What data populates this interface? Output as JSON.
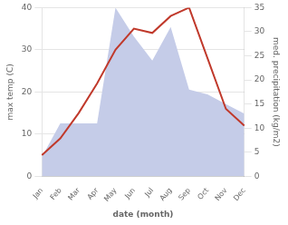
{
  "chart_data": {
    "type": "line",
    "xlabel": "date (month)",
    "ylabel": "max temp (C)",
    "y2label": "med. precipitation (kg/m2)",
    "categories": [
      "Jan",
      "Feb",
      "Mar",
      "Apr",
      "May",
      "Jun",
      "Jul",
      "Aug",
      "Sep",
      "Oct",
      "Nov",
      "Dec"
    ],
    "series": [
      {
        "type": "area",
        "axis": "y2",
        "color": "#c5cce8",
        "values": [
          4,
          11,
          11,
          11,
          35,
          29,
          24,
          31,
          18,
          17,
          15,
          13
        ]
      },
      {
        "type": "line",
        "color": "#c0392b",
        "values": [
          5,
          9,
          15,
          22,
          30,
          35,
          34,
          38,
          40,
          28,
          16,
          12
        ]
      }
    ],
    "ylim": [
      0,
      40
    ],
    "yticks": [
      0,
      10,
      20,
      30,
      40
    ],
    "y2lim": [
      0,
      35
    ],
    "y2ticks": [
      0,
      5,
      10,
      15,
      20,
      25,
      30,
      35
    ],
    "grid": true
  }
}
